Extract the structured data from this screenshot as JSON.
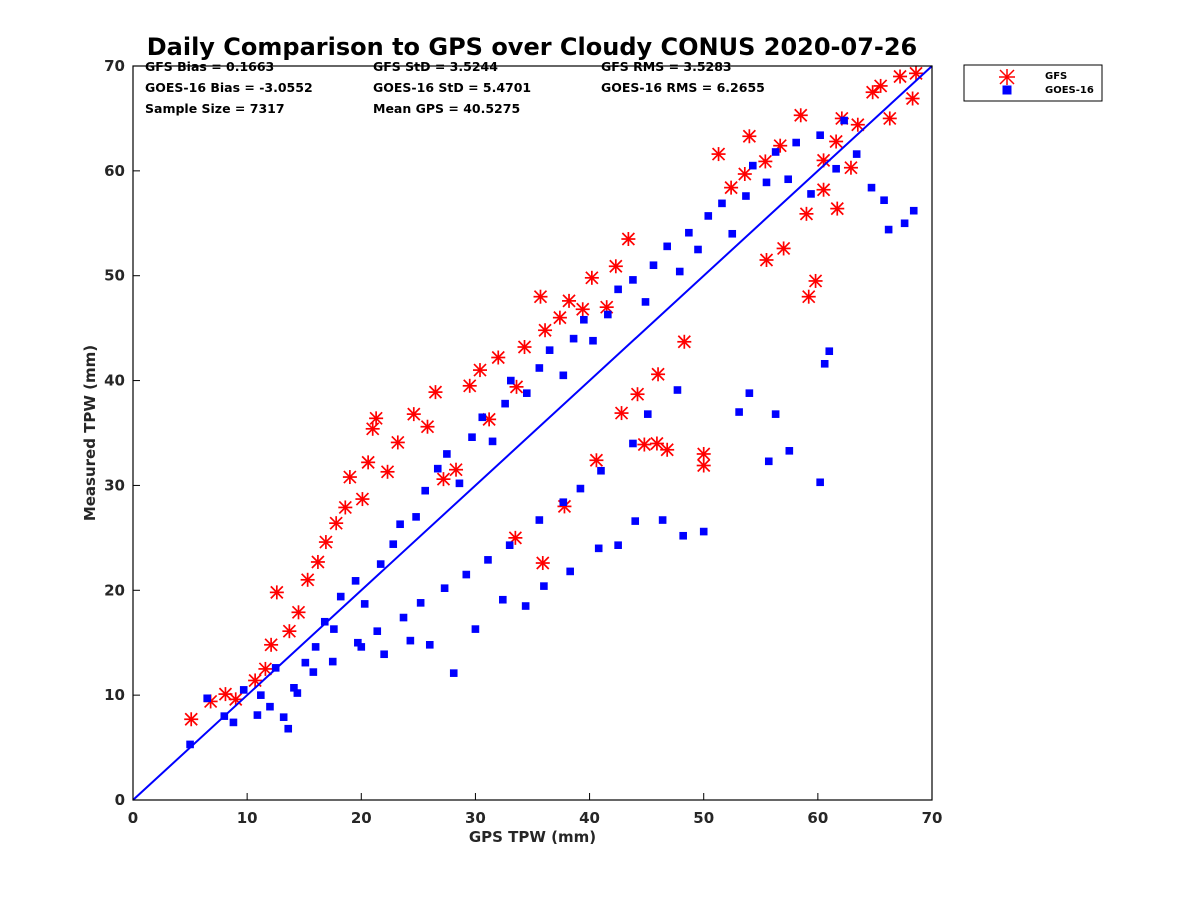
{
  "chart_data": {
    "type": "scatter",
    "title": "Daily Comparison to GPS over Cloudy CONUS 2020-07-26",
    "xlabel": "GPS TPW (mm)",
    "ylabel": "Measured TPW (mm)",
    "xlim": [
      0,
      70
    ],
    "ylim": [
      0,
      70
    ],
    "xticks": [
      "0",
      "10",
      "20",
      "30",
      "40",
      "50",
      "60",
      "70"
    ],
    "yticks": [
      "0",
      "10",
      "20",
      "30",
      "40",
      "50",
      "60",
      "70"
    ],
    "grid": false,
    "legend_position": "top-right outside",
    "stats": {
      "gfs_bias": "GFS Bias = 0.1663",
      "gfs_std": "GFS StD = 3.5244",
      "gfs_rms": "GFS RMS = 3.5283",
      "goes_bias": "GOES-16 Bias = -3.0552",
      "goes_std": "GOES-16 StD = 5.4701",
      "goes_rms": "GOES-16 RMS = 6.2655",
      "sample_size": "Sample Size = 7317",
      "mean_gps": "Mean GPS = 40.5275"
    },
    "reference_line": {
      "x": [
        0,
        70
      ],
      "y": [
        0,
        70
      ],
      "color": "#0000ff"
    },
    "series": [
      {
        "name": "GFS",
        "marker": "asterisk",
        "color": "#ff0000",
        "points": [
          [
            5.1,
            7.7
          ],
          [
            6.8,
            9.4
          ],
          [
            8.1,
            10.1
          ],
          [
            9.0,
            9.6
          ],
          [
            10.7,
            11.4
          ],
          [
            11.6,
            12.5
          ],
          [
            12.1,
            14.8
          ],
          [
            12.6,
            19.8
          ],
          [
            13.7,
            16.1
          ],
          [
            14.5,
            17.9
          ],
          [
            15.3,
            21.0
          ],
          [
            16.2,
            22.7
          ],
          [
            16.9,
            24.6
          ],
          [
            17.8,
            26.4
          ],
          [
            18.6,
            27.9
          ],
          [
            19.0,
            30.8
          ],
          [
            20.1,
            28.7
          ],
          [
            20.6,
            32.2
          ],
          [
            21.0,
            35.4
          ],
          [
            21.3,
            36.4
          ],
          [
            22.3,
            31.3
          ],
          [
            23.2,
            34.1
          ],
          [
            24.6,
            36.8
          ],
          [
            25.8,
            35.6
          ],
          [
            26.5,
            38.9
          ],
          [
            27.2,
            30.6
          ],
          [
            28.3,
            31.5
          ],
          [
            29.5,
            39.5
          ],
          [
            30.4,
            41.0
          ],
          [
            31.2,
            36.3
          ],
          [
            32.0,
            42.2
          ],
          [
            33.6,
            39.4
          ],
          [
            34.3,
            43.2
          ],
          [
            35.7,
            48.0
          ],
          [
            36.1,
            44.8
          ],
          [
            37.4,
            46.0
          ],
          [
            38.2,
            47.6
          ],
          [
            39.4,
            46.8
          ],
          [
            40.2,
            49.8
          ],
          [
            41.5,
            47.0
          ],
          [
            42.3,
            50.9
          ],
          [
            43.4,
            53.5
          ],
          [
            44.8,
            33.9
          ],
          [
            45.9,
            34.0
          ],
          [
            46.8,
            33.4
          ],
          [
            50.0,
            31.9
          ],
          [
            50.0,
            33.0
          ],
          [
            51.3,
            61.6
          ],
          [
            52.4,
            58.4
          ],
          [
            53.6,
            59.7
          ],
          [
            54.0,
            63.3
          ],
          [
            55.4,
            60.9
          ],
          [
            56.7,
            62.4
          ],
          [
            58.5,
            65.3
          ],
          [
            59.2,
            48.0
          ],
          [
            59.8,
            49.5
          ],
          [
            60.5,
            61.0
          ],
          [
            61.6,
            62.8
          ],
          [
            62.1,
            65.0
          ],
          [
            62.9,
            60.3
          ],
          [
            63.5,
            64.4
          ],
          [
            64.8,
            67.5
          ],
          [
            65.5,
            68.1
          ],
          [
            66.3,
            65.0
          ],
          [
            67.2,
            69.0
          ],
          [
            68.3,
            66.9
          ],
          [
            68.6,
            69.3
          ],
          [
            33.5,
            25.0
          ],
          [
            35.9,
            22.6
          ],
          [
            37.8,
            28.0
          ],
          [
            40.6,
            32.4
          ],
          [
            42.8,
            36.9
          ],
          [
            44.2,
            38.7
          ],
          [
            46.0,
            40.6
          ],
          [
            48.3,
            43.7
          ],
          [
            55.5,
            51.5
          ],
          [
            57.0,
            52.6
          ],
          [
            59.0,
            55.9
          ],
          [
            60.5,
            58.2
          ],
          [
            61.7,
            56.4
          ]
        ]
      },
      {
        "name": "GOES-16",
        "marker": "square",
        "color": "#0000ff",
        "points": [
          [
            5.0,
            5.3
          ],
          [
            6.5,
            9.7
          ],
          [
            8.0,
            8.0
          ],
          [
            8.8,
            7.4
          ],
          [
            9.7,
            10.5
          ],
          [
            11.2,
            10.0
          ],
          [
            12.5,
            12.6
          ],
          [
            13.2,
            7.9
          ],
          [
            13.6,
            6.8
          ],
          [
            14.4,
            10.2
          ],
          [
            15.1,
            13.1
          ],
          [
            16.0,
            14.6
          ],
          [
            16.8,
            17.0
          ],
          [
            17.6,
            16.3
          ],
          [
            18.2,
            19.4
          ],
          [
            19.5,
            20.9
          ],
          [
            20.3,
            18.7
          ],
          [
            21.7,
            22.5
          ],
          [
            22.8,
            24.4
          ],
          [
            23.4,
            26.3
          ],
          [
            24.8,
            27.0
          ],
          [
            25.6,
            29.5
          ],
          [
            26.7,
            31.6
          ],
          [
            27.5,
            33.0
          ],
          [
            28.6,
            30.2
          ],
          [
            29.7,
            34.6
          ],
          [
            30.6,
            36.5
          ],
          [
            31.5,
            34.2
          ],
          [
            32.6,
            37.8
          ],
          [
            33.1,
            40.0
          ],
          [
            34.5,
            38.8
          ],
          [
            35.6,
            41.2
          ],
          [
            36.5,
            42.9
          ],
          [
            37.7,
            40.5
          ],
          [
            38.6,
            44.0
          ],
          [
            39.5,
            45.8
          ],
          [
            40.3,
            43.8
          ],
          [
            41.6,
            46.3
          ],
          [
            42.5,
            48.7
          ],
          [
            43.8,
            49.6
          ],
          [
            44.9,
            47.5
          ],
          [
            45.6,
            51.0
          ],
          [
            46.8,
            52.8
          ],
          [
            47.9,
            50.4
          ],
          [
            48.7,
            54.1
          ],
          [
            49.5,
            52.5
          ],
          [
            50.4,
            55.7
          ],
          [
            51.6,
            56.9
          ],
          [
            52.5,
            54.0
          ],
          [
            53.7,
            57.6
          ],
          [
            54.3,
            60.5
          ],
          [
            55.5,
            58.9
          ],
          [
            56.3,
            61.8
          ],
          [
            57.4,
            59.2
          ],
          [
            58.1,
            62.7
          ],
          [
            59.4,
            57.8
          ],
          [
            60.2,
            63.4
          ],
          [
            61.6,
            60.2
          ],
          [
            62.3,
            64.8
          ],
          [
            63.4,
            61.6
          ],
          [
            64.7,
            58.4
          ],
          [
            65.8,
            57.2
          ],
          [
            66.2,
            54.4
          ],
          [
            67.6,
            55.0
          ],
          [
            68.4,
            56.2
          ],
          [
            20.0,
            14.6
          ],
          [
            22.0,
            13.9
          ],
          [
            24.3,
            15.2
          ],
          [
            26.0,
            14.8
          ],
          [
            28.1,
            12.1
          ],
          [
            30.0,
            16.3
          ],
          [
            32.4,
            19.1
          ],
          [
            34.4,
            18.5
          ],
          [
            36.0,
            20.4
          ],
          [
            38.3,
            21.8
          ],
          [
            40.8,
            24.0
          ],
          [
            42.5,
            24.3
          ],
          [
            44.0,
            26.6
          ],
          [
            46.4,
            26.7
          ],
          [
            48.2,
            25.2
          ],
          [
            50.0,
            25.6
          ],
          [
            55.7,
            32.3
          ],
          [
            57.5,
            33.3
          ],
          [
            60.2,
            30.3
          ],
          [
            60.6,
            41.6
          ],
          [
            61.0,
            42.8
          ],
          [
            56.3,
            36.8
          ],
          [
            54.0,
            38.8
          ],
          [
            53.1,
            37.0
          ],
          [
            47.7,
            39.1
          ],
          [
            45.1,
            36.8
          ],
          [
            43.8,
            34.0
          ],
          [
            41.0,
            31.4
          ],
          [
            39.2,
            29.7
          ],
          [
            37.7,
            28.4
          ],
          [
            35.6,
            26.7
          ],
          [
            33.0,
            24.3
          ],
          [
            31.1,
            22.9
          ],
          [
            29.2,
            21.5
          ],
          [
            27.3,
            20.2
          ],
          [
            25.2,
            18.8
          ],
          [
            23.7,
            17.4
          ],
          [
            21.4,
            16.1
          ],
          [
            19.7,
            15.0
          ],
          [
            17.5,
            13.2
          ],
          [
            15.8,
            12.2
          ],
          [
            14.1,
            10.7
          ],
          [
            12.0,
            8.9
          ],
          [
            10.9,
            8.1
          ]
        ]
      }
    ]
  }
}
